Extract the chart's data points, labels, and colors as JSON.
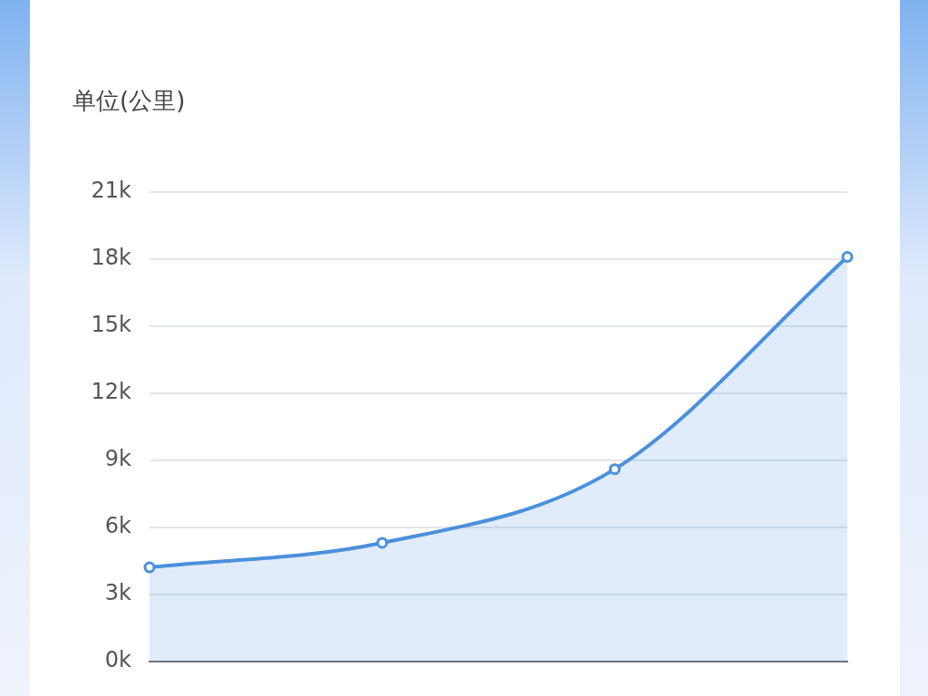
{
  "chart_data": {
    "type": "area",
    "ylabel": "单位(公里)",
    "categories": [
      null,
      null,
      null,
      null
    ],
    "series": [
      {
        "color": "#4a90dc",
        "values": [
          4200,
          5300,
          8600,
          18100
        ]
      }
    ],
    "ylim": [
      0,
      21000
    ],
    "yticks": [
      {
        "value": 0,
        "label": "0k"
      },
      {
        "value": 3000,
        "label": "3k"
      },
      {
        "value": 6000,
        "label": "6k"
      },
      {
        "value": 9000,
        "label": "9k"
      },
      {
        "value": 12000,
        "label": "12k"
      },
      {
        "value": 15000,
        "label": "15k"
      },
      {
        "value": 18000,
        "label": "18k"
      },
      {
        "value": 21000,
        "label": "21k"
      }
    ],
    "grid": "y",
    "legend": false,
    "marker": "circle",
    "line_style": "solid"
  }
}
